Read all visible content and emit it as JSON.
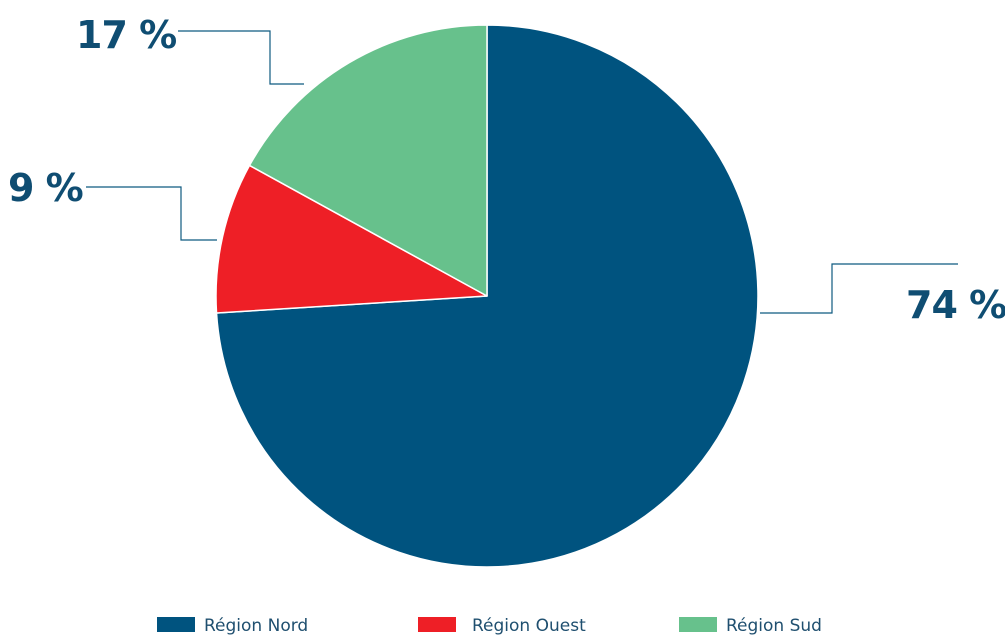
{
  "chart_data": {
    "type": "pie",
    "series": [
      {
        "name": "Région Nord",
        "value": 74,
        "label": "74 %",
        "color": "#00537f"
      },
      {
        "name": "Région Ouest",
        "value": 9,
        "label": "9 %",
        "color": "#ee1f26"
      },
      {
        "name": "Région Sud",
        "value": 17,
        "label": "17 %",
        "color": "#67c18c"
      }
    ],
    "start_angle_deg": 0,
    "direction": "clockwise",
    "legend_position": "bottom",
    "label_color": "#0f4d72"
  }
}
